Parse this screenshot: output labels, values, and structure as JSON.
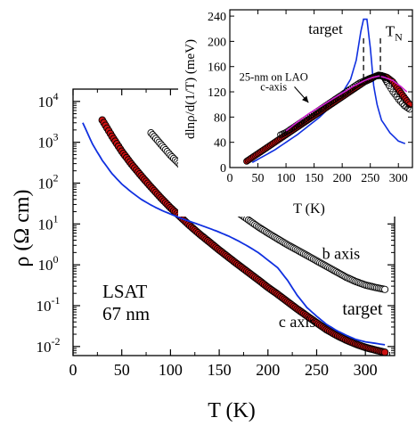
{
  "chart_data": [
    {
      "type": "scatter",
      "xlabel": "T (K)",
      "ylabel": "ρ (Ω cm)",
      "xlim": [
        0,
        330
      ],
      "ylim": [
        0.006,
        20000
      ],
      "yscale": "log",
      "xticks": [
        0,
        50,
        100,
        150,
        200,
        250,
        300
      ],
      "yticks": [
        {
          "value": 0.01,
          "base": "10",
          "exp": "-2"
        },
        {
          "value": 0.1,
          "base": "10",
          "exp": "-1"
        },
        {
          "value": 1,
          "base": "10",
          "exp": "0"
        },
        {
          "value": 10,
          "base": "10",
          "exp": "1"
        },
        {
          "value": 100,
          "base": "10",
          "exp": "2"
        },
        {
          "value": 1000,
          "base": "10",
          "exp": "3"
        },
        {
          "value": 10000,
          "base": "10",
          "exp": "4"
        }
      ],
      "annotations": {
        "sample": "LSAT",
        "thickness": "67 nm"
      },
      "grid": false,
      "series": [
        {
          "name": "b axis",
          "style": "open-circle",
          "color": "#000000",
          "x": [
            80,
            90,
            100,
            110,
            120,
            130,
            140,
            150,
            160,
            170,
            180,
            190,
            200,
            210,
            220,
            230,
            240,
            250,
            260,
            270,
            280,
            290,
            300,
            310,
            320
          ],
          "y": [
            1700,
            900,
            480,
            280,
            170,
            105,
            66,
            43,
            28,
            18.5,
            12.5,
            8.5,
            6.0,
            4.3,
            3.1,
            2.3,
            1.7,
            1.25,
            0.92,
            0.68,
            0.5,
            0.39,
            0.32,
            0.28,
            0.25
          ]
        },
        {
          "name": "c axis",
          "style": "filled-circle",
          "color": "#cc1111",
          "x": [
            30,
            40,
            50,
            60,
            70,
            80,
            90,
            100,
            110,
            120,
            130,
            140,
            150,
            160,
            170,
            180,
            190,
            200,
            210,
            220,
            230,
            240,
            250,
            260,
            270,
            280,
            290,
            300,
            310,
            320
          ],
          "y": [
            3500,
            1400,
            600,
            290,
            150,
            80,
            44,
            25,
            15,
            9.0,
            5.6,
            3.6,
            2.3,
            1.5,
            0.98,
            0.65,
            0.43,
            0.28,
            0.19,
            0.125,
            0.083,
            0.056,
            0.038,
            0.026,
            0.019,
            0.0145,
            0.0115,
            0.0095,
            0.0082,
            0.0072
          ]
        },
        {
          "name": "target",
          "style": "line",
          "color": "#1030e0",
          "x": [
            10,
            20,
            30,
            40,
            50,
            60,
            70,
            80,
            90,
            100,
            110,
            120,
            130,
            140,
            150,
            160,
            170,
            180,
            190,
            200,
            210,
            220,
            230,
            240,
            250,
            260,
            270,
            280,
            290,
            300,
            310,
            320
          ],
          "y": [
            3000,
            900,
            360,
            170,
            95,
            60,
            40,
            29,
            22,
            17.5,
            14,
            11.5,
            9.5,
            7.8,
            6.3,
            5.0,
            3.8,
            2.8,
            2.0,
            1.3,
            0.85,
            0.42,
            0.18,
            0.09,
            0.055,
            0.035,
            0.025,
            0.019,
            0.015,
            0.013,
            0.012,
            0.011
          ]
        }
      ],
      "series_labels": [
        {
          "text": "b axis",
          "x": 275,
          "y": 1.4
        },
        {
          "text": "c axis",
          "x": 230,
          "y": 0.03
        },
        {
          "text": "target",
          "x": 297,
          "y": 0.06
        }
      ]
    },
    {
      "type": "scatter",
      "xlabel": "T (K)",
      "ylabel": "dlnρ/d(1/T) (meV)",
      "xlim": [
        0,
        325
      ],
      "ylim": [
        0,
        250
      ],
      "xticks": [
        0,
        50,
        100,
        150,
        200,
        250,
        300
      ],
      "yticks": [
        0,
        40,
        80,
        120,
        160,
        200,
        240
      ],
      "grid": false,
      "series": [
        {
          "name": "target",
          "style": "line",
          "color": "#1030e0",
          "x": [
            40,
            60,
            80,
            100,
            120,
            140,
            160,
            180,
            200,
            215,
            225,
            233,
            238,
            244,
            250,
            256,
            262,
            270,
            285,
            300,
            312
          ],
          "y": [
            8,
            18,
            28,
            40,
            52,
            66,
            80,
            97,
            118,
            140,
            170,
            215,
            235,
            235,
            190,
            130,
            100,
            75,
            55,
            42,
            38
          ]
        },
        {
          "name": "b axis",
          "style": "open-circle",
          "color": "#000000",
          "x": [
            90,
            100,
            110,
            120,
            130,
            140,
            150,
            160,
            170,
            180,
            190,
            200,
            210,
            220,
            230,
            240,
            250,
            260,
            265,
            270,
            275,
            280,
            290,
            300,
            310,
            320
          ],
          "y": [
            52,
            56,
            62,
            68,
            74,
            80,
            86,
            92,
            98,
            104,
            110,
            116,
            122,
            128,
            134,
            138,
            142,
            145,
            147,
            146,
            142,
            134,
            120,
            108,
            98,
            92
          ]
        },
        {
          "name": "c axis",
          "style": "filled-circle",
          "color": "#cc1111",
          "x": [
            30,
            40,
            50,
            60,
            70,
            80,
            90,
            100,
            110,
            120,
            130,
            140,
            150,
            160,
            170,
            180,
            190,
            200,
            210,
            220,
            230,
            240,
            250,
            260,
            270,
            280,
            290,
            300,
            310,
            320
          ],
          "y": [
            10,
            16,
            22,
            28,
            34,
            40,
            46,
            52,
            58,
            64,
            70,
            76,
            82,
            88,
            94,
            100,
            106,
            112,
            118,
            124,
            130,
            136,
            140,
            145,
            146,
            143,
            136,
            124,
            112,
            100
          ]
        },
        {
          "name": "25-nm on LAO c-axis",
          "style": "line",
          "color": "#d020d0",
          "x": [
            100,
            120,
            140,
            160,
            180,
            200,
            220,
            240,
            255,
            265,
            275,
            290,
            305,
            315
          ],
          "y": [
            58,
            72,
            85,
            96,
            107,
            118,
            129,
            138,
            143,
            145,
            143,
            138,
            128,
            120
          ]
        }
      ],
      "annotations": {
        "target": "target",
        "tn": "T",
        "tn_subscript": "N",
        "lao_line1": "25-nm on LAO",
        "lao_line2": "c-axis",
        "marker_temps": [
          238,
          268
        ]
      }
    }
  ]
}
